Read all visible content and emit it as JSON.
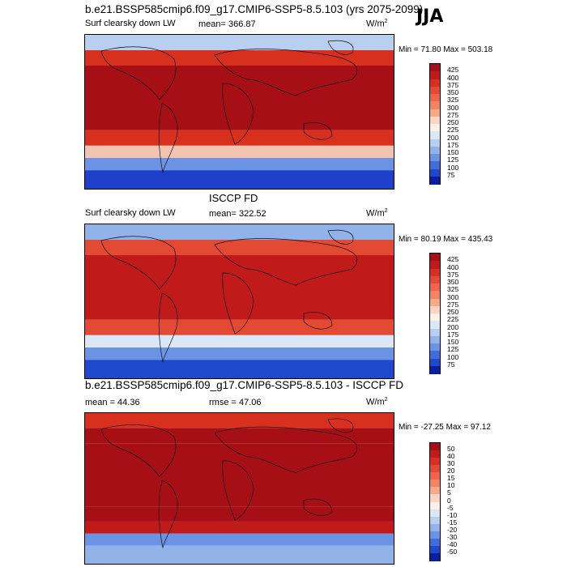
{
  "season": "JJA",
  "panels": [
    {
      "title": "b.e21.BSSP585cmip6.f09_g17.CMIP6-SSP5-8.5.103 (yrs 2075-2099)",
      "left_label": "Surf clearsky down LW",
      "mean_label": "mean= 366.87",
      "units": "W/m",
      "units_exp": "2",
      "minmax": "Min =  71.80 Max = 503.18",
      "colorbar_labels": [
        "425",
        "400",
        "375",
        "350",
        "325",
        "300",
        "275",
        "250",
        "225",
        "200",
        "175",
        "150",
        "125",
        "100",
        "75"
      ],
      "colorbar_colors": [
        "#a50f15",
        "#c01a1a",
        "#d7301f",
        "#e34a33",
        "#ef6548",
        "#f4845f",
        "#f8a985",
        "#fcd4bf",
        "#fdf0e6",
        "#dbe6f7",
        "#b9cff0",
        "#92b2ea",
        "#6a93e4",
        "#3f6ddc",
        "#1f49cc",
        "#0a1f9c"
      ],
      "map_colors": {
        "polar_s": "#1e3fc8",
        "mid_s": "#f2c4b0",
        "warm": "#d7301f",
        "hot": "#a50f15",
        "cold_n": "#b9cff0"
      }
    },
    {
      "title": "ISCCP FD",
      "left_label": "Surf clearsky down LW",
      "mean_label": "mean= 322.52",
      "units": "W/m",
      "units_exp": "2",
      "minmax": "Min =  80.19 Max = 435.43",
      "colorbar_labels": [
        "425",
        "400",
        "375",
        "350",
        "325",
        "300",
        "275",
        "250",
        "225",
        "200",
        "175",
        "150",
        "125",
        "100",
        "75"
      ],
      "colorbar_colors": [
        "#a50f15",
        "#c01a1a",
        "#d7301f",
        "#e34a33",
        "#ef6548",
        "#f4845f",
        "#f8a985",
        "#fcd4bf",
        "#fdf0e6",
        "#dbe6f7",
        "#b9cff0",
        "#92b2ea",
        "#6a93e4",
        "#3f6ddc",
        "#1f49cc",
        "#0a1f9c"
      ],
      "map_colors": {
        "polar_s": "#1f49cc",
        "mid_s": "#dbe6f7",
        "warm": "#e34a33",
        "hot": "#c01a1a",
        "cold_n": "#92b2ea"
      }
    },
    {
      "title": "b.e21.BSSP585cmip6.f09_g17.CMIP6-SSP5-8.5.103 - ISCCP FD",
      "left_label": "mean =  44.36",
      "mean_label": "rmse =  47.06",
      "units": "W/m",
      "units_exp": "2",
      "minmax": "Min = -27.25 Max =  97.12",
      "colorbar_labels": [
        "50",
        "40",
        "30",
        "20",
        "15",
        "10",
        "5",
        "0",
        "-5",
        "-10",
        "-15",
        "-20",
        "-30",
        "-40",
        "-50"
      ],
      "colorbar_colors": [
        "#a50f15",
        "#c01a1a",
        "#d7301f",
        "#e34a33",
        "#ef6548",
        "#f4845f",
        "#f8a985",
        "#fcd4bf",
        "#fdf0e6",
        "#dbe6f7",
        "#b9cff0",
        "#92b2ea",
        "#6a93e4",
        "#3f6ddc",
        "#1f49cc",
        "#0a1f9c"
      ],
      "map_colors": {
        "polar_s": "#92b2ea",
        "mid_s": "#c01a1a",
        "warm": "#a50f15",
        "hot": "#a50f15",
        "cold_n": "#d7301f"
      }
    }
  ]
}
